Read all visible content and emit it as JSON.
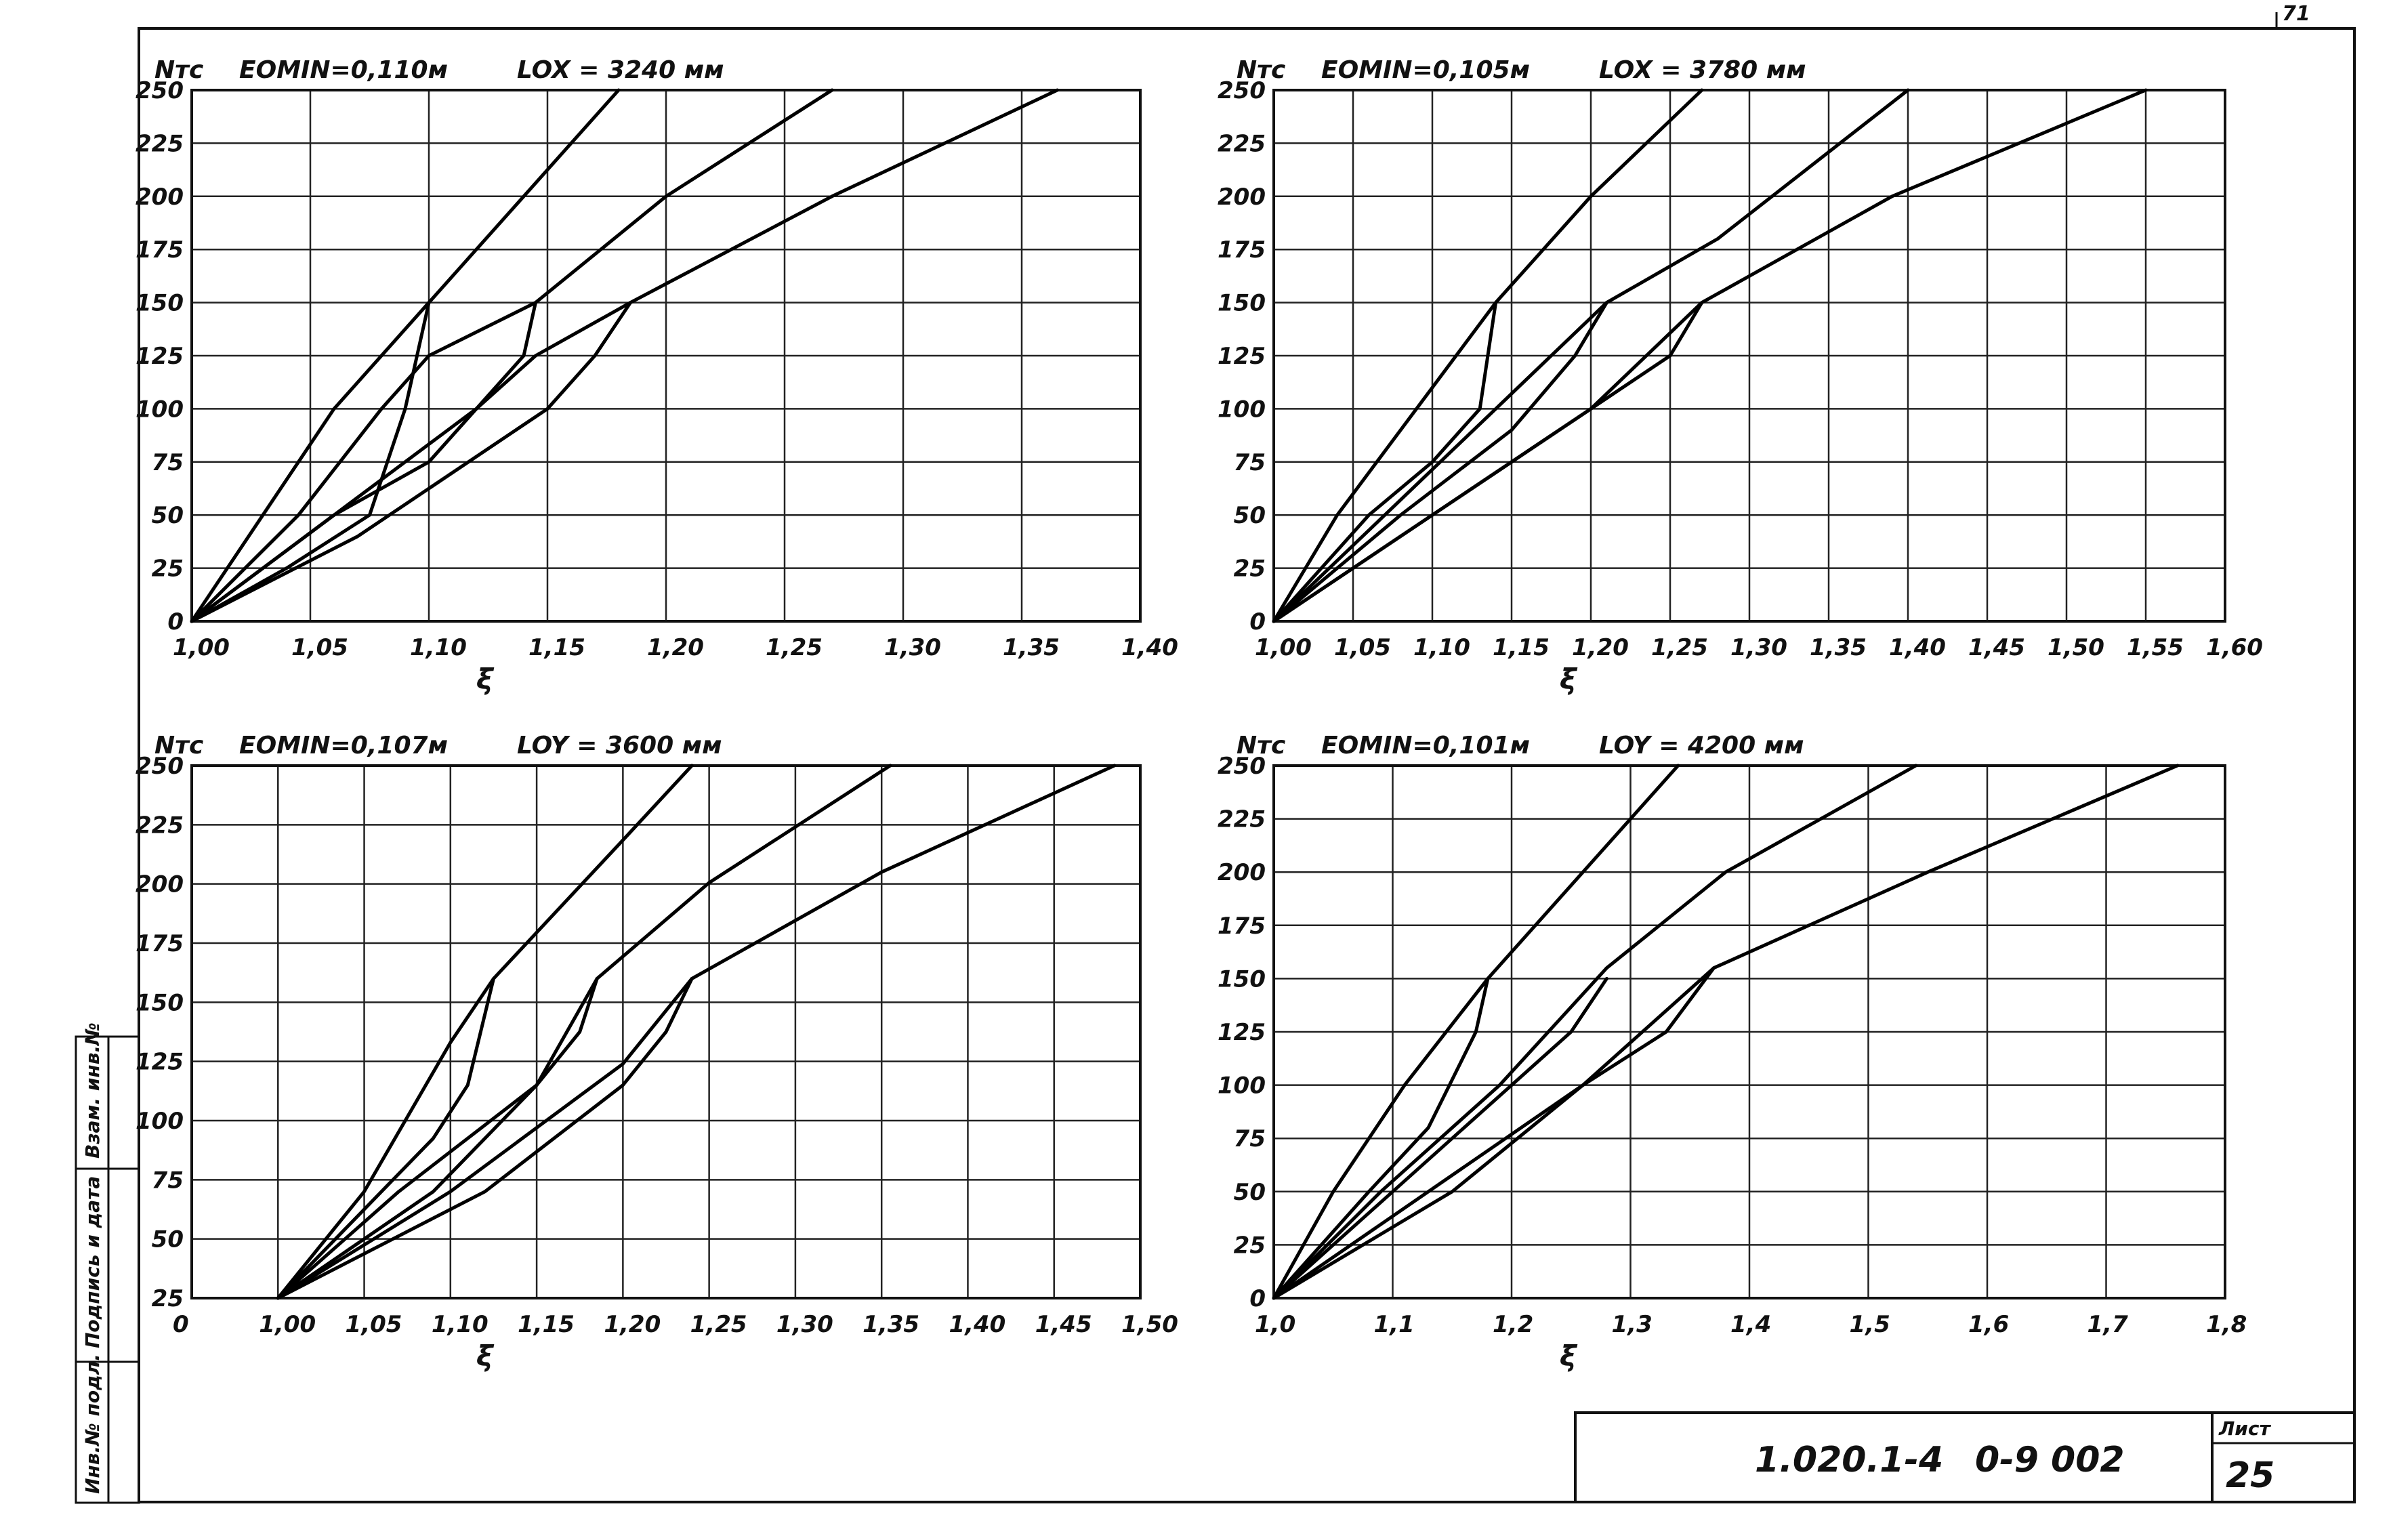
{
  "sheet": {
    "code_left": "1.020.1-4",
    "code_right": "0-9 002",
    "sheet_label": "Лист",
    "sheet_number": "25",
    "corner_mark": "71",
    "side_labels": [
      "Инв.№ подл.",
      "Подпись и дата",
      "Взам. инв.№"
    ]
  },
  "chart_data": [
    {
      "type": "line",
      "title_left": "EOMIN=0,110м",
      "title_right": "LOX = 3240 мм",
      "ylabel": "Nтс",
      "xlabel": "ξ",
      "xlim": [
        1.0,
        1.4
      ],
      "ylim": [
        0,
        250
      ],
      "xticks": [
        "1,00",
        "1,05",
        "1,10",
        "1,15",
        "1,20",
        "1,25",
        "1,30",
        "1,35",
        "1,40"
      ],
      "yticks": [
        "0",
        "25",
        "50",
        "75",
        "100",
        "125",
        "150",
        "175",
        "200",
        "225",
        "250"
      ],
      "grid": true,
      "series": [
        {
          "values": [
            [
              1.0,
              0
            ],
            [
              1.03,
              50
            ],
            [
              1.06,
              100
            ],
            [
              1.1,
              150
            ],
            [
              1.14,
              200
            ],
            [
              1.18,
              250
            ]
          ]
        },
        {
          "values": [
            [
              1.0,
              0
            ],
            [
              1.045,
              50
            ],
            [
              1.08,
              100
            ],
            [
              1.1,
              125
            ],
            [
              1.145,
              150
            ],
            [
              1.2,
              200
            ],
            [
              1.27,
              250
            ]
          ]
        },
        {
          "values": [
            [
              1.0,
              0
            ],
            [
              1.06,
              50
            ],
            [
              1.12,
              100
            ],
            [
              1.145,
              125
            ],
            [
              1.185,
              150
            ],
            [
              1.27,
              200
            ],
            [
              1.365,
              250
            ]
          ]
        },
        {
          "values": [
            [
              1.0,
              0
            ],
            [
              1.04,
              25
            ],
            [
              1.075,
              50
            ],
            [
              1.09,
              100
            ],
            [
              1.1,
              150
            ]
          ]
        },
        {
          "values": [
            [
              1.0,
              0
            ],
            [
              1.06,
              50
            ],
            [
              1.1,
              75
            ],
            [
              1.12,
              100
            ],
            [
              1.14,
              125
            ],
            [
              1.145,
              150
            ]
          ]
        },
        {
          "values": [
            [
              1.0,
              0
            ],
            [
              1.07,
              40
            ],
            [
              1.15,
              100
            ],
            [
              1.17,
              125
            ],
            [
              1.185,
              150
            ]
          ]
        }
      ]
    },
    {
      "type": "line",
      "title_left": "EOMIN=0,105м",
      "title_right": "LOX = 3780 мм",
      "ylabel": "Nтс",
      "xlabel": "ξ",
      "xlim": [
        1.0,
        1.6
      ],
      "ylim": [
        0,
        250
      ],
      "xticks": [
        "1,00",
        "1,05",
        "1,10",
        "1,15",
        "1,20",
        "1,25",
        "1,30",
        "1,35",
        "1,40",
        "1,45",
        "1,50",
        "1,55",
        "1,60"
      ],
      "yticks": [
        "0",
        "25",
        "50",
        "75",
        "100",
        "125",
        "150",
        "175",
        "200",
        "225",
        "250"
      ],
      "grid": true,
      "series": [
        {
          "values": [
            [
              1.0,
              0
            ],
            [
              1.04,
              50
            ],
            [
              1.09,
              100
            ],
            [
              1.14,
              150
            ],
            [
              1.2,
              200
            ],
            [
              1.27,
              250
            ]
          ]
        },
        {
          "values": [
            [
              1.0,
              0
            ],
            [
              1.07,
              50
            ],
            [
              1.14,
              100
            ],
            [
              1.21,
              150
            ],
            [
              1.28,
              180
            ],
            [
              1.4,
              250
            ]
          ]
        },
        {
          "values": [
            [
              1.0,
              0
            ],
            [
              1.1,
              50
            ],
            [
              1.2,
              100
            ],
            [
              1.27,
              150
            ],
            [
              1.39,
              200
            ],
            [
              1.55,
              250
            ]
          ]
        },
        {
          "values": [
            [
              1.0,
              0
            ],
            [
              1.06,
              50
            ],
            [
              1.1,
              75
            ],
            [
              1.13,
              100
            ],
            [
              1.14,
              150
            ]
          ]
        },
        {
          "values": [
            [
              1.0,
              0
            ],
            [
              1.08,
              50
            ],
            [
              1.15,
              90
            ],
            [
              1.19,
              125
            ],
            [
              1.21,
              150
            ]
          ]
        },
        {
          "values": [
            [
              1.0,
              0
            ],
            [
              1.1,
              50
            ],
            [
              1.18,
              90
            ],
            [
              1.25,
              125
            ],
            [
              1.27,
              150
            ]
          ]
        }
      ]
    },
    {
      "type": "line",
      "title_left": "EOMIN=0,107м",
      "title_right": "LOY = 3600 мм",
      "ylabel": "Nтс",
      "xlabel": "ξ",
      "xlim": [
        0.95,
        1.5
      ],
      "ylim": [
        0,
        250
      ],
      "xticks": [
        "0",
        "1,00",
        "1,05",
        "1,10",
        "1,15",
        "1,20",
        "1,25",
        "1,30",
        "1,35",
        "1,40",
        "1,45",
        "1,50"
      ],
      "yticks": [
        "25",
        "50",
        "75",
        "100",
        "125",
        "150",
        "175",
        "200",
        "225",
        "250"
      ],
      "grid": true,
      "series": [
        {
          "values": [
            [
              1.0,
              0
            ],
            [
              1.05,
              50
            ],
            [
              1.1,
              120
            ],
            [
              1.125,
              150
            ],
            [
              1.2,
              215
            ],
            [
              1.24,
              250
            ]
          ]
        },
        {
          "values": [
            [
              1.0,
              0
            ],
            [
              1.07,
              50
            ],
            [
              1.15,
              100
            ],
            [
              1.185,
              150
            ],
            [
              1.25,
              195
            ],
            [
              1.355,
              250
            ]
          ]
        },
        {
          "values": [
            [
              1.0,
              0
            ],
            [
              1.1,
              50
            ],
            [
              1.2,
              110
            ],
            [
              1.24,
              150
            ],
            [
              1.35,
              200
            ],
            [
              1.485,
              250
            ]
          ]
        },
        {
          "values": [
            [
              1.0,
              0
            ],
            [
              1.06,
              50
            ],
            [
              1.09,
              75
            ],
            [
              1.11,
              100
            ],
            [
              1.125,
              150
            ]
          ]
        },
        {
          "values": [
            [
              1.0,
              0
            ],
            [
              1.09,
              50
            ],
            [
              1.15,
              100
            ],
            [
              1.175,
              125
            ],
            [
              1.185,
              150
            ]
          ]
        },
        {
          "values": [
            [
              1.0,
              0
            ],
            [
              1.12,
              50
            ],
            [
              1.2,
              100
            ],
            [
              1.225,
              125
            ],
            [
              1.24,
              150
            ]
          ]
        }
      ]
    },
    {
      "type": "line",
      "title_left": "EOMIN=0,101м",
      "title_right": "LOY = 4200 мм",
      "ylabel": "Nтс",
      "xlabel": "ξ",
      "xlim": [
        1.0,
        1.8
      ],
      "ylim": [
        0,
        250
      ],
      "xticks": [
        "1,0",
        "1,1",
        "1,2",
        "1,3",
        "1,4",
        "1,5",
        "1,6",
        "1,7",
        "1,8"
      ],
      "yticks": [
        "0",
        "25",
        "50",
        "75",
        "100",
        "125",
        "150",
        "175",
        "200",
        "225",
        "250"
      ],
      "grid": true,
      "series": [
        {
          "values": [
            [
              1.0,
              0
            ],
            [
              1.05,
              50
            ],
            [
              1.11,
              100
            ],
            [
              1.18,
              150
            ],
            [
              1.26,
              200
            ],
            [
              1.34,
              250
            ]
          ]
        },
        {
          "values": [
            [
              1.0,
              0
            ],
            [
              1.09,
              50
            ],
            [
              1.19,
              100
            ],
            [
              1.28,
              155
            ],
            [
              1.38,
              200
            ],
            [
              1.54,
              250
            ]
          ]
        },
        {
          "values": [
            [
              1.0,
              0
            ],
            [
              1.13,
              50
            ],
            [
              1.26,
              100
            ],
            [
              1.37,
              155
            ],
            [
              1.55,
              200
            ],
            [
              1.76,
              250
            ]
          ]
        },
        {
          "values": [
            [
              1.0,
              0
            ],
            [
              1.08,
              50
            ],
            [
              1.13,
              80
            ],
            [
              1.17,
              125
            ],
            [
              1.18,
              150
            ]
          ]
        },
        {
          "values": [
            [
              1.0,
              0
            ],
            [
              1.1,
              50
            ],
            [
              1.2,
              100
            ],
            [
              1.25,
              125
            ],
            [
              1.28,
              150
            ]
          ]
        },
        {
          "values": [
            [
              1.0,
              0
            ],
            [
              1.15,
              50
            ],
            [
              1.26,
              100
            ],
            [
              1.33,
              125
            ],
            [
              1.37,
              155
            ]
          ]
        }
      ]
    }
  ]
}
